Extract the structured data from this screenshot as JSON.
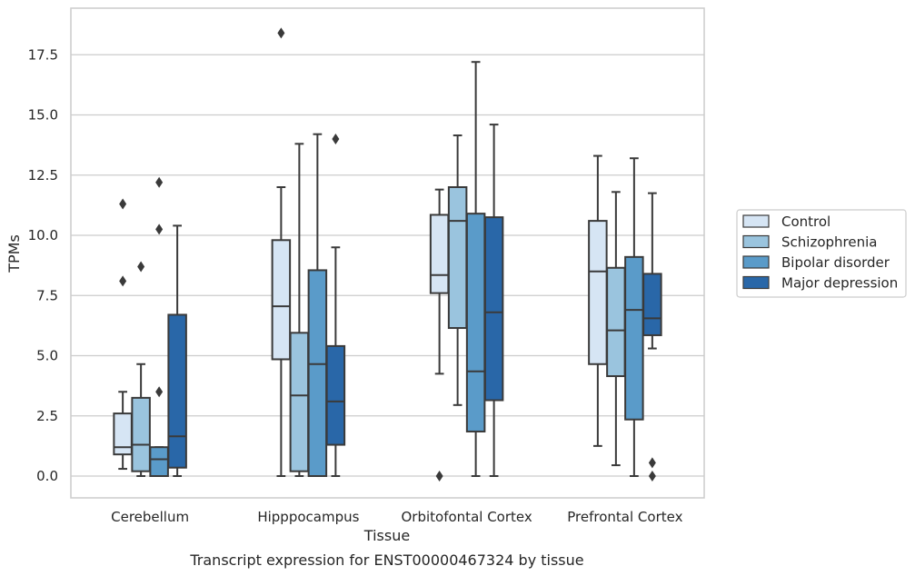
{
  "chart_data": {
    "type": "box",
    "title": "",
    "caption": "Transcript expression for ENST00000467324 by tissue",
    "xlabel": "Tissue",
    "ylabel": "TPMs",
    "ylim": [
      -0.85,
      19.5
    ],
    "yticks": [
      "0.0",
      "2.5",
      "5.0",
      "7.5",
      "10.0",
      "12.5",
      "15.0",
      "17.5"
    ],
    "ytick_values": [
      0,
      2.5,
      5,
      7.5,
      10,
      12.5,
      15,
      17.5
    ],
    "grid": true,
    "legend_position": "right",
    "categories": [
      "Cerebellum",
      "Hipppocampus",
      "Orbitofontal Cortex",
      "Prefrontal Cortex"
    ],
    "series": [
      {
        "name": "Control",
        "color": "#d6e5f4",
        "boxes": [
          {
            "whislo": 0.3,
            "q1": 0.9,
            "med": 1.2,
            "q3": 2.6,
            "whishi": 3.5,
            "fliers": [
              8.1,
              11.3
            ]
          },
          {
            "whislo": 0.0,
            "q1": 4.85,
            "med": 7.05,
            "q3": 9.8,
            "whishi": 12.0,
            "fliers": [
              18.4
            ]
          },
          {
            "whislo": 4.25,
            "q1": 7.6,
            "med": 8.35,
            "q3": 10.85,
            "whishi": 11.9,
            "fliers": [
              0.0
            ]
          },
          {
            "whislo": 1.25,
            "q1": 4.65,
            "med": 8.5,
            "q3": 10.6,
            "whishi": 13.3,
            "fliers": []
          }
        ]
      },
      {
        "name": "Schizophrenia",
        "color": "#9ac4de",
        "boxes": [
          {
            "whislo": 0.0,
            "q1": 0.2,
            "med": 1.3,
            "q3": 3.25,
            "whishi": 4.65,
            "fliers": [
              8.7
            ]
          },
          {
            "whislo": 0.0,
            "q1": 0.2,
            "med": 3.35,
            "q3": 5.95,
            "whishi": 13.8,
            "fliers": []
          },
          {
            "whislo": 2.95,
            "q1": 6.15,
            "med": 10.6,
            "q3": 12.0,
            "whishi": 14.15,
            "fliers": []
          },
          {
            "whislo": 0.45,
            "q1": 4.15,
            "med": 6.05,
            "q3": 8.65,
            "whishi": 11.8,
            "fliers": []
          }
        ]
      },
      {
        "name": "Bipolar disorder",
        "color": "#5a9bc9",
        "boxes": [
          {
            "whislo": 0.0,
            "q1": 0.0,
            "med": 0.7,
            "q3": 1.2,
            "whishi": 1.2,
            "fliers": [
              3.5,
              10.25,
              12.2
            ]
          },
          {
            "whislo": 0.0,
            "q1": 0.0,
            "med": 4.65,
            "q3": 8.55,
            "whishi": 14.2,
            "fliers": []
          },
          {
            "whislo": 0.0,
            "q1": 1.85,
            "med": 4.35,
            "q3": 10.9,
            "whishi": 17.2,
            "fliers": []
          },
          {
            "whislo": 0.0,
            "q1": 2.35,
            "med": 6.9,
            "q3": 9.1,
            "whishi": 13.2,
            "fliers": []
          }
        ]
      },
      {
        "name": "Major depression",
        "color": "#2967a8",
        "boxes": [
          {
            "whislo": 0.0,
            "q1": 0.35,
            "med": 1.65,
            "q3": 6.7,
            "whishi": 10.4,
            "fliers": []
          },
          {
            "whislo": 0.0,
            "q1": 1.3,
            "med": 3.1,
            "q3": 5.4,
            "whishi": 9.5,
            "fliers": [
              14.0
            ]
          },
          {
            "whislo": 0.0,
            "q1": 3.15,
            "med": 6.8,
            "q3": 10.75,
            "whishi": 14.6,
            "fliers": []
          },
          {
            "whislo": 5.3,
            "q1": 5.85,
            "med": 6.55,
            "q3": 8.4,
            "whishi": 11.75,
            "fliers": [
              0.0,
              0.55
            ]
          }
        ]
      }
    ]
  }
}
